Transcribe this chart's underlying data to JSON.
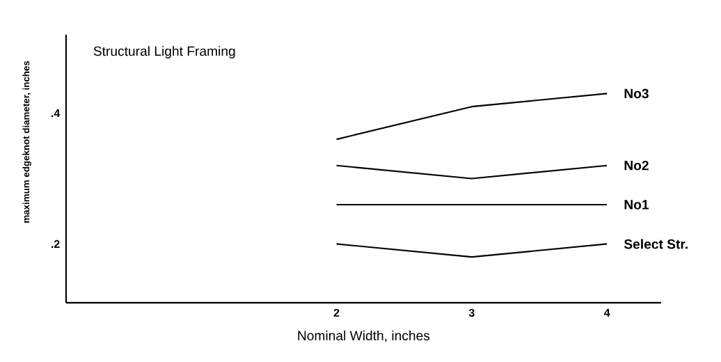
{
  "chart_data": {
    "type": "line",
    "title": "Structural Light Framing",
    "xlabel": "Nominal Width, inches",
    "ylabel": "maximum edgeknot diameter, inches",
    "x": [
      2,
      3,
      4
    ],
    "series": [
      {
        "name": "No3",
        "color": "#000000",
        "values": [
          0.36,
          0.41,
          0.43
        ]
      },
      {
        "name": "No2",
        "color": "#000000",
        "values": [
          0.32,
          0.3,
          0.32
        ]
      },
      {
        "name": "No1",
        "color": "#000000",
        "values": [
          0.26,
          0.26,
          0.26
        ]
      },
      {
        "name": "Select Str.",
        "color": "#000000",
        "values": [
          0.2,
          0.18,
          0.2
        ]
      }
    ],
    "xlim": [
      0,
      4.4
    ],
    "ylim": [
      0.11,
      0.52
    ],
    "xticks": [
      2,
      3,
      4
    ],
    "yticks": [
      {
        "value": 0.4,
        "label": ".4"
      },
      {
        "value": 0.2,
        "label": ".2"
      }
    ],
    "grid": false,
    "legend": false,
    "marker": "none",
    "line_style": "solid"
  }
}
